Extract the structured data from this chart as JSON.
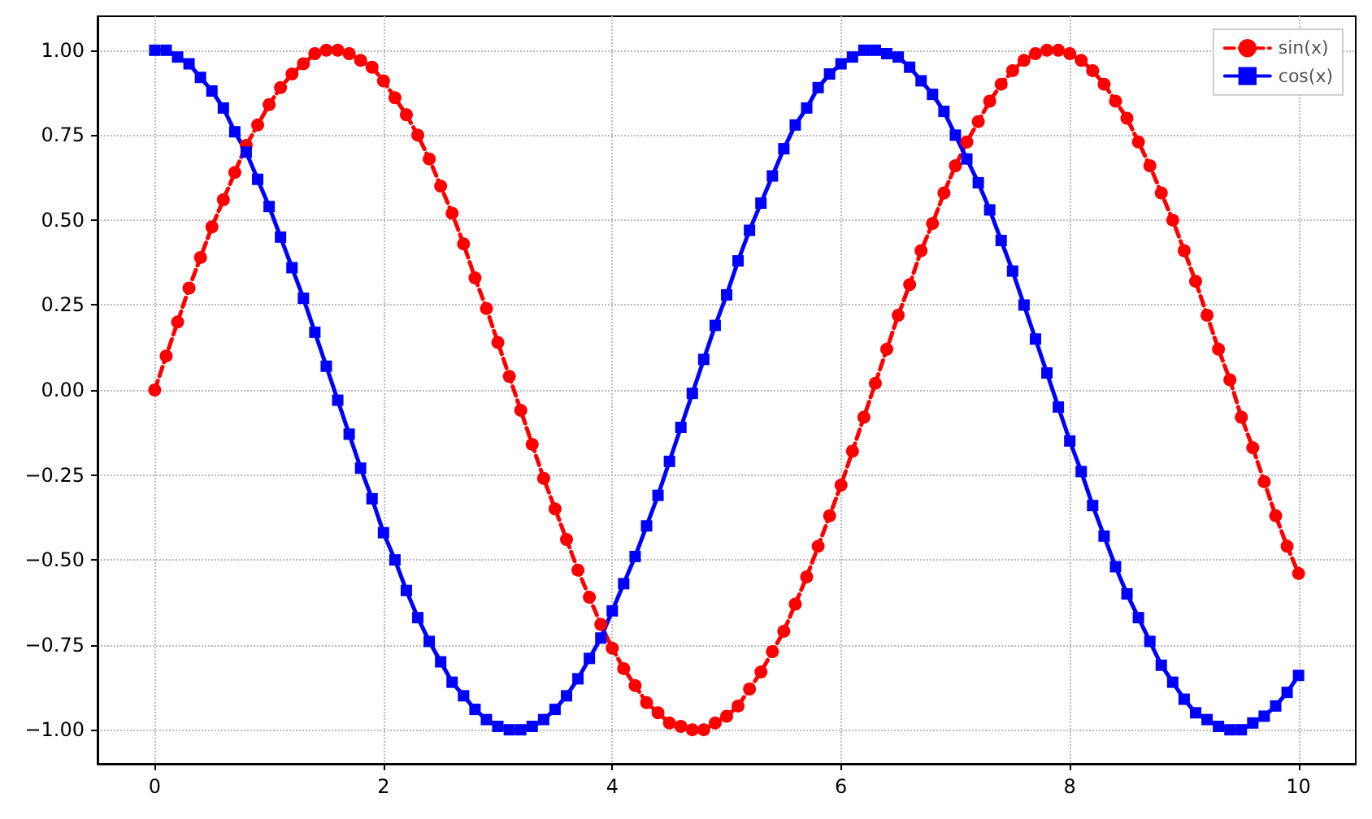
{
  "chart_data": {
    "type": "line",
    "x": [
      0,
      0.1,
      0.2,
      0.3,
      0.4,
      0.5,
      0.6,
      0.7,
      0.8,
      0.9,
      1,
      1.1,
      1.2,
      1.3,
      1.4,
      1.5,
      1.6,
      1.7,
      1.8,
      1.9,
      2,
      2.1,
      2.2,
      2.3,
      2.4,
      2.5,
      2.6,
      2.7,
      2.8,
      2.9,
      3,
      3.1,
      3.2,
      3.3,
      3.4,
      3.5,
      3.6,
      3.7,
      3.8,
      3.9,
      4,
      4.1,
      4.2,
      4.3,
      4.4,
      4.5,
      4.6,
      4.7,
      4.8,
      4.9,
      5,
      5.1,
      5.2,
      5.3,
      5.4,
      5.5,
      5.6,
      5.7,
      5.8,
      5.9,
      6,
      6.1,
      6.2,
      6.3,
      6.4,
      6.5,
      6.6,
      6.7,
      6.8,
      6.9,
      7,
      7.1,
      7.2,
      7.3,
      7.4,
      7.5,
      7.6,
      7.7,
      7.8,
      7.9,
      8,
      8.1,
      8.2,
      8.3,
      8.4,
      8.5,
      8.6,
      8.7,
      8.8,
      8.9,
      9,
      9.1,
      9.2,
      9.3,
      9.4,
      9.5,
      9.6,
      9.7,
      9.8,
      9.9,
      10
    ],
    "series": [
      {
        "name": "sin(x)",
        "color": "#ff0000",
        "marker": "circle",
        "line_style": "dashed",
        "values": [
          0,
          0.1,
          0.2,
          0.3,
          0.39,
          0.48,
          0.56,
          0.64,
          0.72,
          0.78,
          0.84,
          0.89,
          0.93,
          0.96,
          0.99,
          1.0,
          1.0,
          0.99,
          0.97,
          0.95,
          0.91,
          0.86,
          0.81,
          0.75,
          0.68,
          0.6,
          0.52,
          0.43,
          0.33,
          0.24,
          0.14,
          0.04,
          -0.06,
          -0.16,
          -0.26,
          -0.35,
          -0.44,
          -0.53,
          -0.61,
          -0.69,
          -0.76,
          -0.82,
          -0.87,
          -0.92,
          -0.95,
          -0.98,
          -0.99,
          -1.0,
          -1.0,
          -0.98,
          -0.96,
          -0.93,
          -0.88,
          -0.83,
          -0.77,
          -0.71,
          -0.63,
          -0.55,
          -0.46,
          -0.37,
          -0.28,
          -0.18,
          -0.08,
          0.02,
          0.12,
          0.22,
          0.31,
          0.41,
          0.49,
          0.58,
          0.66,
          0.73,
          0.79,
          0.85,
          0.9,
          0.94,
          0.97,
          0.99,
          1.0,
          1.0,
          0.99,
          0.97,
          0.94,
          0.9,
          0.85,
          0.8,
          0.73,
          0.66,
          0.58,
          0.5,
          0.41,
          0.32,
          0.22,
          0.12,
          0.03,
          -0.08,
          -0.17,
          -0.27,
          -0.37,
          -0.46,
          -0.54
        ]
      },
      {
        "name": "cos(x)",
        "color": "#0000ff",
        "marker": "square",
        "line_style": "solid",
        "values": [
          1.0,
          1.0,
          0.98,
          0.96,
          0.92,
          0.88,
          0.83,
          0.76,
          0.7,
          0.62,
          0.54,
          0.45,
          0.36,
          0.27,
          0.17,
          0.07,
          -0.03,
          -0.13,
          -0.23,
          -0.32,
          -0.42,
          -0.5,
          -0.59,
          -0.67,
          -0.74,
          -0.8,
          -0.86,
          -0.9,
          -0.94,
          -0.97,
          -0.99,
          -1.0,
          -1.0,
          -0.99,
          -0.97,
          -0.94,
          -0.9,
          -0.85,
          -0.79,
          -0.73,
          -0.65,
          -0.57,
          -0.49,
          -0.4,
          -0.31,
          -0.21,
          -0.11,
          -0.01,
          0.09,
          0.19,
          0.28,
          0.38,
          0.47,
          0.55,
          0.63,
          0.71,
          0.78,
          0.83,
          0.89,
          0.93,
          0.96,
          0.98,
          1.0,
          1.0,
          0.99,
          0.98,
          0.95,
          0.91,
          0.87,
          0.82,
          0.75,
          0.68,
          0.61,
          0.53,
          0.44,
          0.35,
          0.25,
          0.15,
          0.05,
          -0.05,
          -0.15,
          -0.24,
          -0.34,
          -0.43,
          -0.52,
          -0.6,
          -0.67,
          -0.74,
          -0.81,
          -0.86,
          -0.91,
          -0.95,
          -0.97,
          -0.99,
          -1.0,
          -1.0,
          -0.98,
          -0.96,
          -0.93,
          -0.89,
          -0.84
        ]
      }
    ],
    "xlim": [
      -0.5,
      10.5
    ],
    "xticks": [
      0,
      2,
      4,
      6,
      8,
      10
    ],
    "ylim": [
      -1.1,
      1.1
    ],
    "yticks": [
      {
        "value": -1,
        "label": "−1.00"
      },
      {
        "value": -0.75,
        "label": "−0.75"
      },
      {
        "value": -0.5,
        "label": "−0.50"
      },
      {
        "value": -0.25,
        "label": "−0.25"
      },
      {
        "value": 0,
        "label": "0.00"
      },
      {
        "value": 0.25,
        "label": "0.25"
      },
      {
        "value": 0.5,
        "label": "0.50"
      },
      {
        "value": 0.75,
        "label": "0.75"
      },
      {
        "value": 1,
        "label": "1.00"
      }
    ],
    "grid": true,
    "legend": "top right"
  }
}
